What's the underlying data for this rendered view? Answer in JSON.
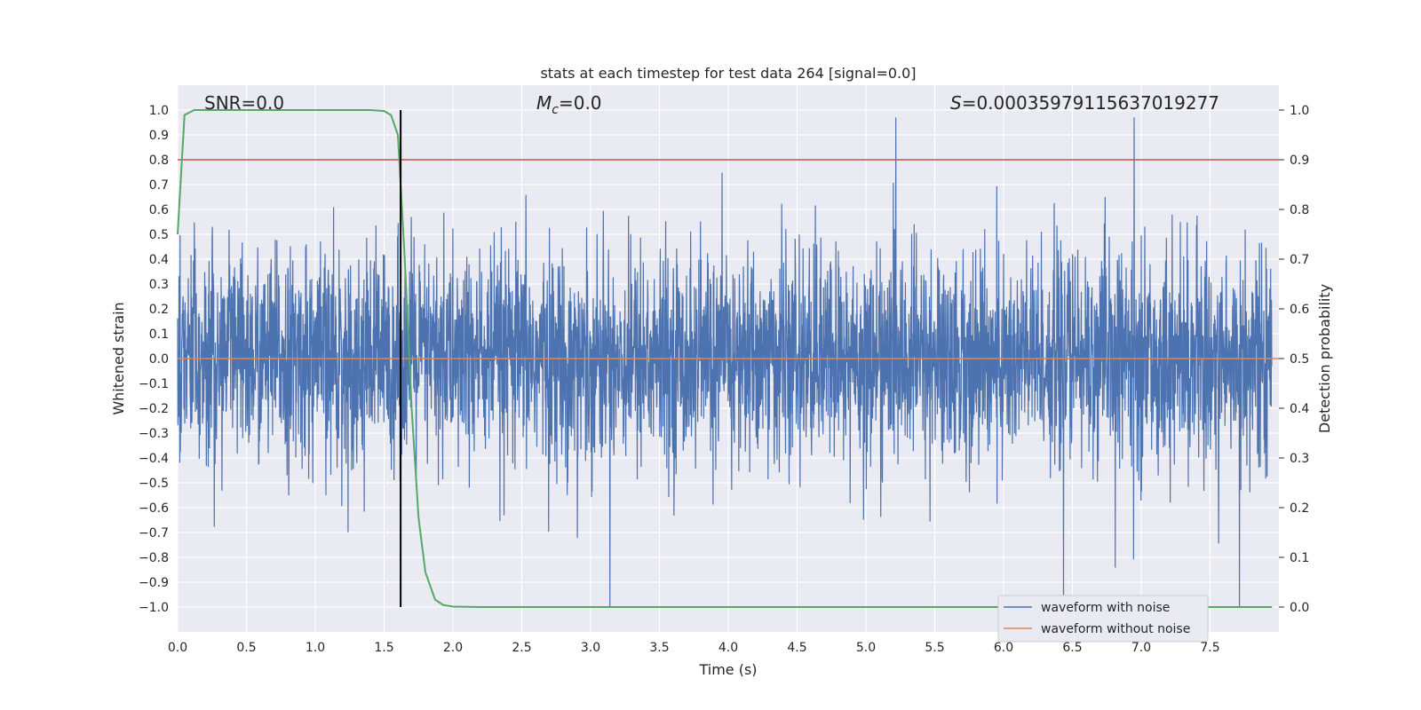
{
  "chart_data": {
    "type": "line",
    "title": "stats at each timestep for test data 264 [signal=0.0]",
    "xlabel": "Time (s)",
    "ylabel": "Whitened strain",
    "ylabel_right": "Detection probability",
    "xlim": [
      0.0,
      8.0
    ],
    "ylim": [
      -1.1,
      1.1
    ],
    "ylim_right": [
      -0.05,
      1.05
    ],
    "x_ticks": [
      "0.0",
      "0.5",
      "1.0",
      "1.5",
      "2.0",
      "2.5",
      "3.0",
      "3.5",
      "4.0",
      "4.5",
      "5.0",
      "5.5",
      "6.0",
      "6.5",
      "7.0",
      "7.5"
    ],
    "y_ticks": [
      "1.0",
      "0.9",
      "0.8",
      "0.7",
      "0.6",
      "0.5",
      "0.4",
      "0.3",
      "0.2",
      "0.1",
      "0.0",
      "-0.1",
      "-0.2",
      "-0.3",
      "-0.4",
      "-0.5",
      "-0.6",
      "-0.7",
      "-0.8",
      "-0.9",
      "-1.0"
    ],
    "y_ticks_right": [
      "1.0",
      "0.9",
      "0.8",
      "0.7",
      "0.6",
      "0.5",
      "0.4",
      "0.3",
      "0.2",
      "0.1",
      "0.0"
    ],
    "grid": true,
    "annotations": {
      "snr": "SNR=0.0",
      "mc_prefix": "M",
      "mc_sub": "c",
      "mc_suffix": "=0.0",
      "s_prefix": "S",
      "s_value": "=0.00035979115637019277"
    },
    "threshold": 0.9,
    "vline_x": 1.62,
    "series": [
      {
        "name": "waveform with noise",
        "color": "#4c72b0",
        "description": "dense whitened noise, amplitude mostly within ±0.6, spikes to about ±1.0"
      },
      {
        "name": "waveform without noise",
        "color": "#dd8452",
        "y_constant": 0.0
      },
      {
        "name": "detection probability",
        "color": "#55a868",
        "axis": "right",
        "x": [
          0.0,
          0.05,
          0.12,
          0.2,
          0.4,
          0.8,
          1.2,
          1.4,
          1.5,
          1.55,
          1.6,
          1.65,
          1.7,
          1.75,
          1.8,
          1.87,
          1.93,
          2.0,
          2.2,
          2.6,
          3.0,
          4.0,
          5.0,
          6.0,
          7.0,
          7.95
        ],
        "y": [
          0.75,
          0.99,
          1.0,
          1.0,
          1.0,
          1.0,
          1.0,
          1.0,
          0.998,
          0.99,
          0.95,
          0.7,
          0.4,
          0.18,
          0.07,
          0.015,
          0.004,
          0.001,
          0.0,
          0.0,
          0.0,
          0.0,
          0.0,
          0.0,
          0.0,
          0.0
        ]
      }
    ],
    "threshold_color": "#c44e52",
    "legend": {
      "position": "lower-right",
      "entries": [
        "waveform with noise",
        "waveform without noise"
      ]
    }
  }
}
